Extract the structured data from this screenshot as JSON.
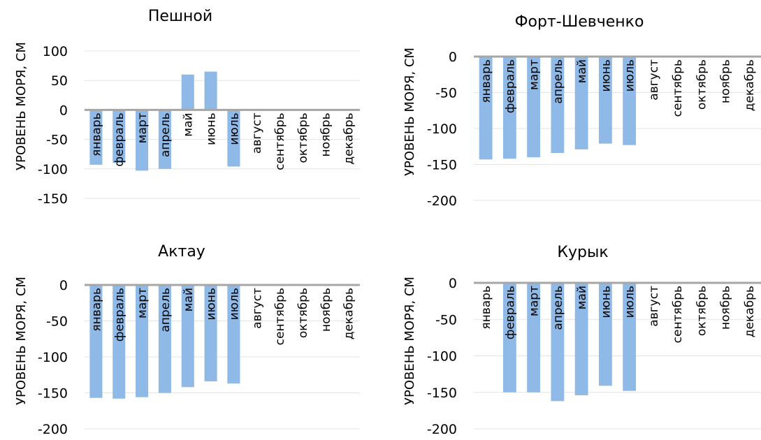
{
  "colors": {
    "bar": "#8FB9E6",
    "axis": "#A6A6A6",
    "grid": "#E3E3E3",
    "text": "#000000"
  },
  "chart_data": [
    {
      "type": "bar",
      "title": "Пешной",
      "ylabel": "УРОВЕНЬ МОРЯ, СМ",
      "xlabel": "",
      "ylim": [
        -150,
        100
      ],
      "yticks": [
        100,
        50,
        0,
        -50,
        -100,
        -150
      ],
      "categories": [
        "январь",
        "февраль",
        "март",
        "апрель",
        "май",
        "июнь",
        "июль",
        "август",
        "сентябрь",
        "октябрь",
        "ноябрь",
        "декабрь"
      ],
      "values": [
        -93,
        -90,
        -103,
        -100,
        60,
        65,
        -96,
        null,
        null,
        null,
        null,
        null
      ],
      "grid": true
    },
    {
      "type": "bar",
      "title": "Форт-Шевченко",
      "ylabel": "УРОВЕНЬ МОРЯ, СМ",
      "xlabel": "",
      "ylim": [
        -200,
        0
      ],
      "yticks": [
        0,
        -50,
        -100,
        -150,
        -200
      ],
      "categories": [
        "январь",
        "февраль",
        "март",
        "апрель",
        "май",
        "июнь",
        "июль",
        "август",
        "сентябрь",
        "октябрь",
        "ноябрь",
        "декабрь"
      ],
      "values": [
        -143,
        -142,
        -140,
        -134,
        -129,
        -121,
        -123,
        null,
        null,
        null,
        null,
        null
      ],
      "grid": true
    },
    {
      "type": "bar",
      "title": "Актау",
      "ylabel": "УРОВЕНЬ МОРЯ, СМ",
      "xlabel": "",
      "ylim": [
        -200,
        0
      ],
      "yticks": [
        0,
        -50,
        -100,
        -150,
        -200
      ],
      "categories": [
        "январь",
        "февраль",
        "март",
        "апрель",
        "май",
        "июнь",
        "июль",
        "август",
        "сентябрь",
        "октябрь",
        "ноябрь",
        "декабрь"
      ],
      "values": [
        -157,
        -158,
        -156,
        -150,
        -142,
        -134,
        -137,
        null,
        null,
        null,
        null,
        null
      ],
      "grid": true
    },
    {
      "type": "bar",
      "title": "Курык",
      "ylabel": "УРОВЕНЬ МОРЯ, СМ",
      "xlabel": "",
      "ylim": [
        -200,
        0
      ],
      "yticks": [
        0,
        -50,
        -100,
        -150,
        -200
      ],
      "categories": [
        "январь",
        "февраль",
        "март",
        "апрель",
        "май",
        "июнь",
        "июль",
        "август",
        "сентябрь",
        "октябрь",
        "ноябрь",
        "декабрь"
      ],
      "values": [
        -1,
        -150,
        -150,
        -162,
        -154,
        -141,
        -148,
        null,
        null,
        null,
        null,
        null
      ],
      "grid": true
    }
  ]
}
